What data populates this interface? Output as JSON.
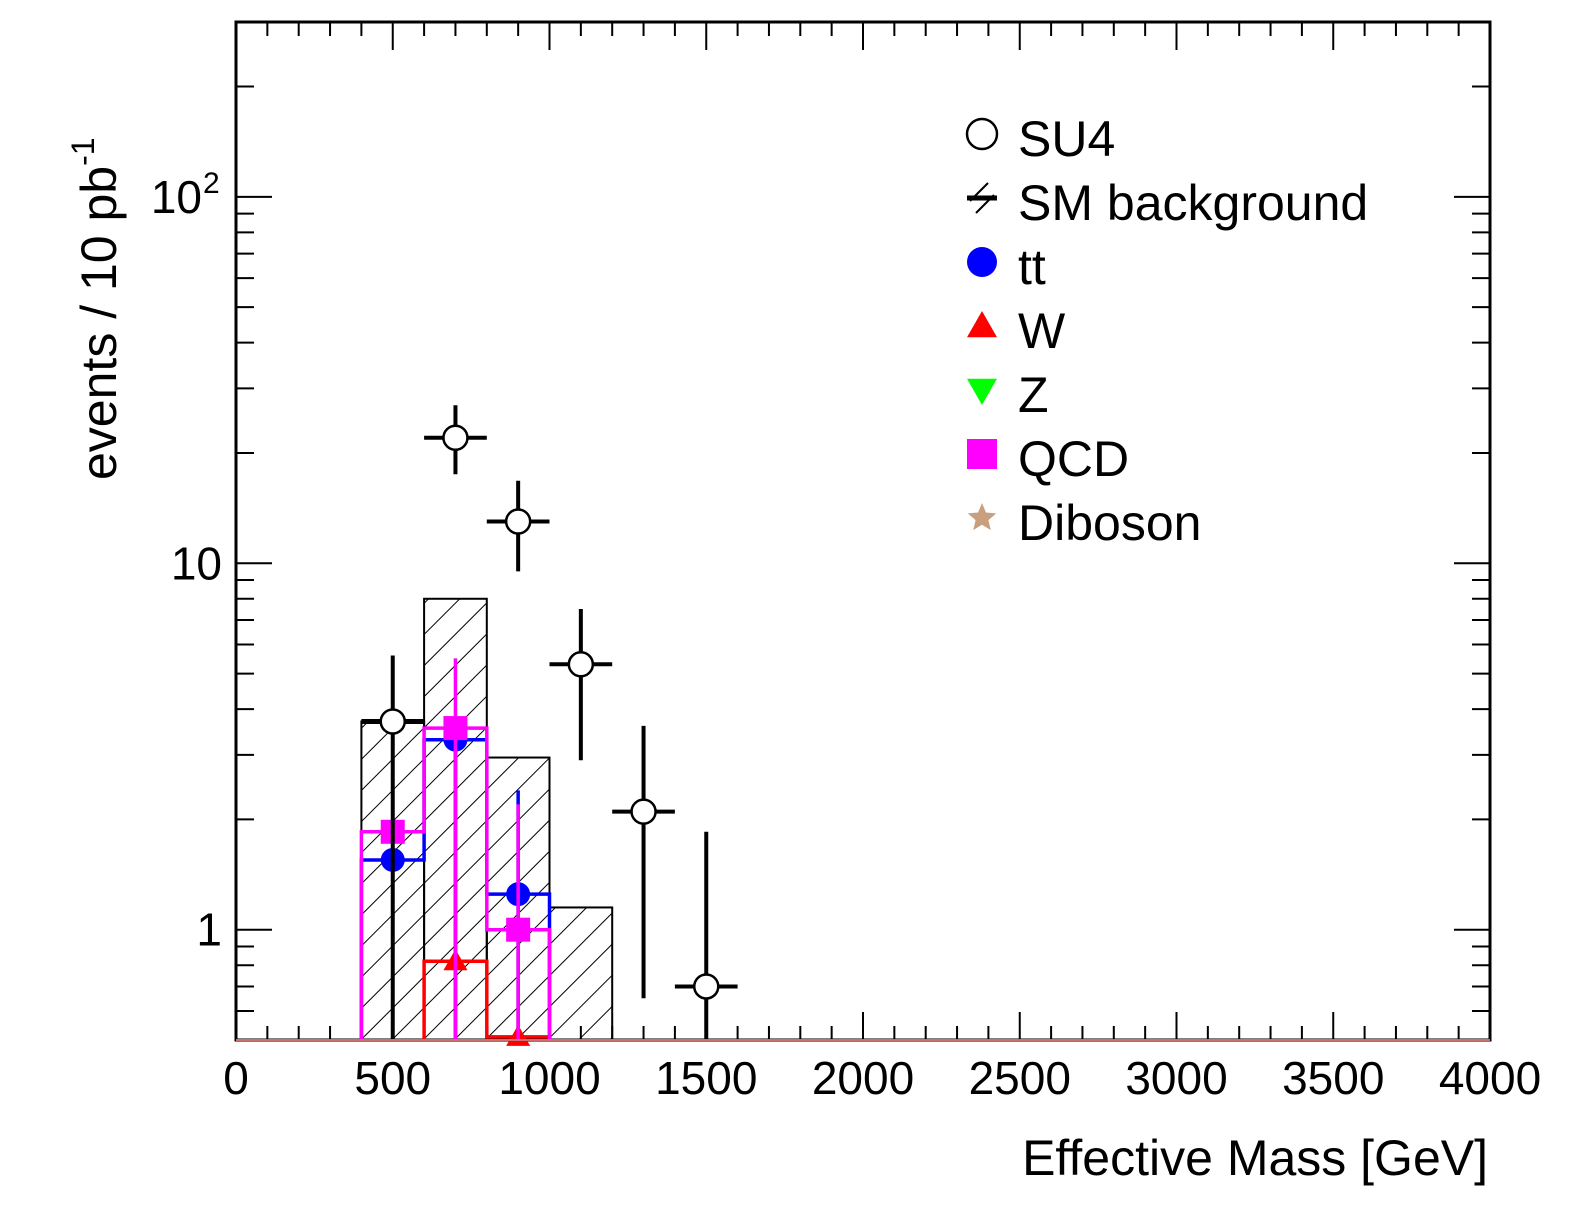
{
  "chart_data": {
    "type": "histogram",
    "xlabel": "Effective Mass [GeV]",
    "ylabel": {
      "main": "events / 10 pb",
      "superscript": "-1"
    },
    "x_axis": {
      "range": [
        0,
        4000
      ],
      "tick_labels": [
        "0",
        "500",
        "1000",
        "1500",
        "2000",
        "2500",
        "3000",
        "3500",
        "4000"
      ]
    },
    "y_axis": {
      "scale": "log",
      "range": [
        0.5,
        300
      ],
      "tick_labels": [
        {
          "value": 1,
          "text": "1",
          "sup": ""
        },
        {
          "value": 10,
          "text": "10",
          "sup": ""
        },
        {
          "value": 100,
          "text": "10",
          "sup": "2"
        }
      ]
    },
    "legend": {
      "position": "top-right",
      "entries": [
        {
          "label": "SU4",
          "marker": "open-circle",
          "color": "#000000"
        },
        {
          "label": "SM background",
          "marker": "hatched-line",
          "color": "#000000"
        },
        {
          "label": "tt",
          "marker": "filled-circle",
          "color": "#0000ff"
        },
        {
          "label": "W",
          "marker": "triangle-up",
          "color": "#ff0000"
        },
        {
          "label": "Z",
          "marker": "triangle-down",
          "color": "#00ff00"
        },
        {
          "label": "QCD",
          "marker": "square",
          "color": "#ff00ff"
        },
        {
          "label": "Diboson",
          "marker": "star",
          "color": "#c8a080"
        }
      ]
    },
    "series": [
      {
        "name": "SM background",
        "kind": "hatched-histogram",
        "color": "#000000",
        "bins": [
          {
            "lo": 400,
            "hi": 600,
            "value": 3.7
          },
          {
            "lo": 600,
            "hi": 800,
            "value": 8.0
          },
          {
            "lo": 800,
            "hi": 1000,
            "value": 2.95
          },
          {
            "lo": 1000,
            "hi": 1200,
            "value": 1.15
          }
        ]
      },
      {
        "name": "tt",
        "kind": "histogram-with-markers",
        "color": "#0000ff",
        "bins": [
          {
            "lo": 400,
            "hi": 600,
            "value": 1.55,
            "err_hi": 4.0
          },
          {
            "lo": 600,
            "hi": 800,
            "value": 3.3,
            "err_hi": 3.5
          },
          {
            "lo": 800,
            "hi": 1000,
            "value": 1.25,
            "err_hi": 2.4
          }
        ]
      },
      {
        "name": "QCD",
        "kind": "histogram-with-markers",
        "color": "#ff00ff",
        "bins": [
          {
            "lo": 400,
            "hi": 600,
            "value": 1.85,
            "err_hi": 3.9
          },
          {
            "lo": 600,
            "hi": 800,
            "value": 3.55,
            "err_hi": 5.5
          },
          {
            "lo": 800,
            "hi": 1000,
            "value": 1.0,
            "err_hi": 2.2
          }
        ]
      },
      {
        "name": "W",
        "kind": "histogram-with-markers",
        "color": "#ff0000",
        "bins": [
          {
            "lo": 600,
            "hi": 800,
            "value": 0.82,
            "err_hi": 3.2
          },
          {
            "lo": 800,
            "hi": 1000,
            "value": 0.51,
            "err_hi": 0.6
          }
        ]
      },
      {
        "name": "SU4",
        "kind": "points-with-errors",
        "color": "#000000",
        "points": [
          {
            "x": 500,
            "y": 3.7,
            "y_lo": 0.5,
            "y_hi": 5.6,
            "x_lo": 400,
            "x_hi": 600
          },
          {
            "x": 700,
            "y": 22.0,
            "y_lo": 17.5,
            "y_hi": 27.0,
            "x_lo": 600,
            "x_hi": 800
          },
          {
            "x": 900,
            "y": 13.0,
            "y_lo": 9.5,
            "y_hi": 16.8,
            "x_lo": 800,
            "x_hi": 1000
          },
          {
            "x": 1100,
            "y": 5.3,
            "y_lo": 2.9,
            "y_hi": 7.5,
            "x_lo": 1000,
            "x_hi": 1200
          },
          {
            "x": 1300,
            "y": 2.1,
            "y_lo": 0.65,
            "y_hi": 3.6,
            "x_lo": 1200,
            "x_hi": 1400
          },
          {
            "x": 1500,
            "y": 0.7,
            "y_lo": 0.5,
            "y_hi": 1.85,
            "x_lo": 1400,
            "x_hi": 1600
          }
        ]
      }
    ]
  }
}
